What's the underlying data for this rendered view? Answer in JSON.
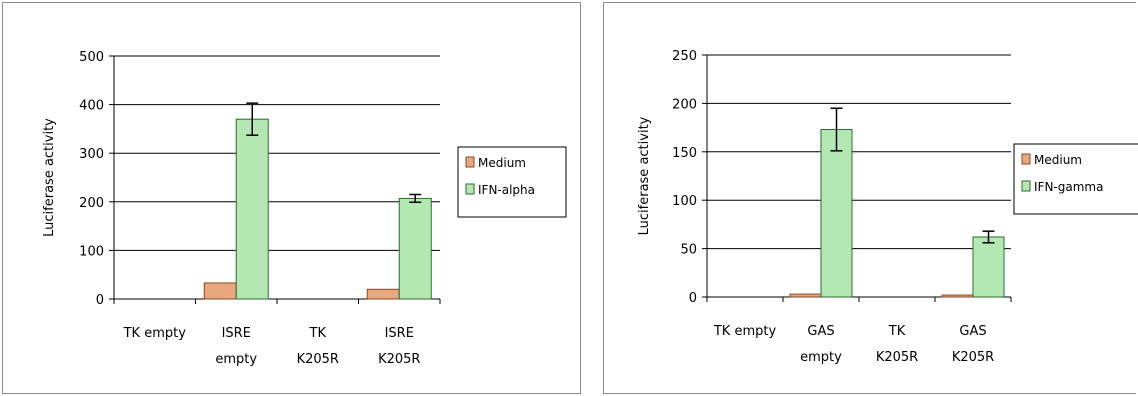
{
  "colors": {
    "medium_fill": "#e8a77f",
    "medium_stroke": "#8a4a26",
    "ifn_fill": "#b3e8b3",
    "ifn_stroke": "#2d6b2d",
    "axis": "#000000",
    "grid": "#000000"
  },
  "chart_data": [
    {
      "type": "bar",
      "title": "",
      "ylabel": "Luciferase activity",
      "xlabel": "",
      "ylim": [
        0,
        500
      ],
      "yticks": [
        "0",
        "100",
        "200",
        "300",
        "400",
        "500"
      ],
      "categories": [
        [
          "TK empty"
        ],
        [
          "ISRE",
          "empty"
        ],
        [
          "TK",
          "K205R"
        ],
        [
          "ISRE",
          "K205R"
        ]
      ],
      "series": [
        {
          "name": "Medium",
          "values": [
            0,
            33,
            0,
            20
          ],
          "errors": [
            0,
            0,
            0,
            0
          ]
        },
        {
          "name": "IFN-alpha",
          "values": [
            0,
            370,
            0,
            207
          ],
          "errors": [
            0,
            33,
            0,
            8
          ]
        }
      ],
      "grid": true,
      "legend_position": "right"
    },
    {
      "type": "bar",
      "title": "",
      "ylabel": "Luciferase activity",
      "xlabel": "",
      "ylim": [
        0,
        250
      ],
      "yticks": [
        "0",
        "50",
        "100",
        "150",
        "200",
        "250"
      ],
      "categories": [
        [
          "TK empty"
        ],
        [
          "GAS",
          "empty"
        ],
        [
          "TK",
          "K205R"
        ],
        [
          "GAS",
          "K205R"
        ]
      ],
      "series": [
        {
          "name": "Medium",
          "values": [
            0,
            3,
            0,
            2
          ],
          "errors": [
            0,
            0,
            0,
            0
          ]
        },
        {
          "name": "IFN-gamma",
          "values": [
            0,
            173,
            0,
            62
          ],
          "errors": [
            0,
            22,
            0,
            6
          ]
        }
      ],
      "grid": true,
      "legend_position": "right"
    }
  ]
}
